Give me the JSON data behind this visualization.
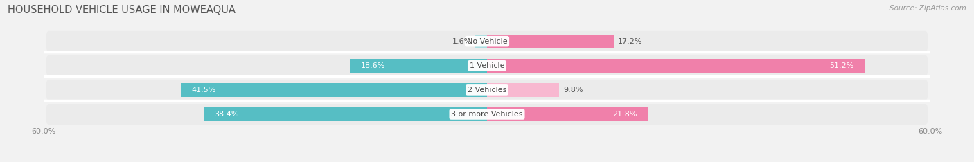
{
  "title": "HOUSEHOLD VEHICLE USAGE IN MOWEAQUA",
  "source": "Source: ZipAtlas.com",
  "categories": [
    "No Vehicle",
    "1 Vehicle",
    "2 Vehicles",
    "3 or more Vehicles"
  ],
  "owner_values": [
    1.6,
    18.6,
    41.5,
    38.4
  ],
  "renter_values": [
    17.2,
    51.2,
    9.8,
    21.8
  ],
  "owner_color": "#56bec4",
  "renter_color": "#f080aa",
  "owner_color_light": "#a8dde0",
  "renter_color_light": "#f8b8d0",
  "background_color": "#f2f2f2",
  "bar_bg_color": "#e8e8e8",
  "row_bg_color": "#ebebeb",
  "xlim": 60.0,
  "title_fontsize": 10.5,
  "label_fontsize": 8,
  "axis_fontsize": 8,
  "source_fontsize": 7.5
}
